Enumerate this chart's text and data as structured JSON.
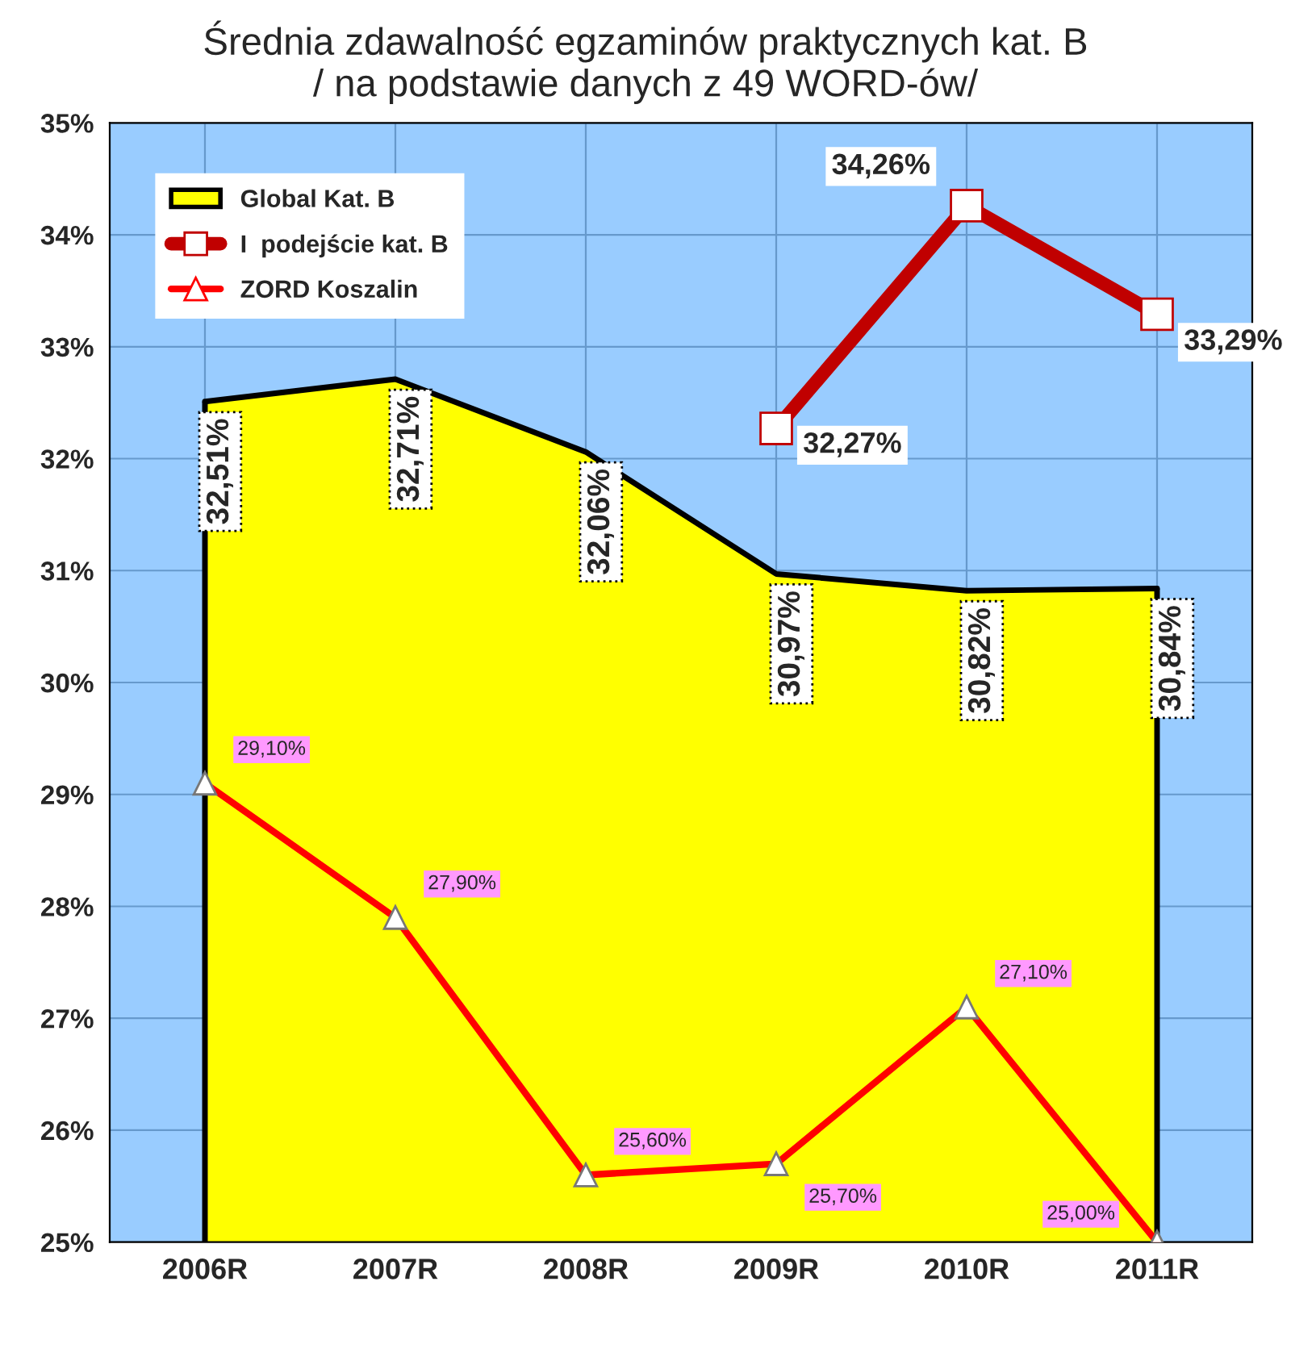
{
  "chart_data": {
    "type": "line",
    "title": "Średnia zdawalność egzaminów praktycznych kat. B\n/ na podstawie danych z 49 WORD-ów/",
    "categories": [
      "2006R",
      "2007R",
      "2008R",
      "2009R",
      "2010R",
      "2011R"
    ],
    "series": [
      {
        "name": "Global Kat. B",
        "type": "area",
        "color": "#ffff00",
        "values": [
          32.51,
          32.71,
          32.06,
          30.97,
          30.82,
          30.84
        ],
        "value_labels": [
          "32,51%",
          "32,71%",
          "32,06%",
          "30,97%",
          "30,82%",
          "30,84%"
        ],
        "marker": "none"
      },
      {
        "name": "I  podejście kat. B",
        "color": "#c00000",
        "values": [
          null,
          null,
          null,
          32.27,
          34.26,
          33.29
        ],
        "value_labels": [
          null,
          null,
          null,
          "32,27%",
          "34,26%",
          "33,29%"
        ],
        "marker": "square"
      },
      {
        "name": "ZORD Koszalin",
        "color": "#ff0000",
        "values": [
          29.1,
          27.9,
          25.6,
          25.7,
          27.1,
          25.0
        ],
        "value_labels": [
          "29,10%",
          "27,90%",
          "25,60%",
          "25,70%",
          "27,10%",
          "25,00%"
        ],
        "marker": "triangle"
      }
    ],
    "ylim": [
      25,
      35
    ],
    "yticks": [
      {
        "value": 25,
        "label": "25%"
      },
      {
        "value": 26,
        "label": "26%"
      },
      {
        "value": 27,
        "label": "27%"
      },
      {
        "value": 28,
        "label": "28%"
      },
      {
        "value": 29,
        "label": "29%"
      },
      {
        "value": 30,
        "label": "30%"
      },
      {
        "value": 31,
        "label": "31%"
      },
      {
        "value": 32,
        "label": "32%"
      },
      {
        "value": 33,
        "label": "33%"
      },
      {
        "value": 34,
        "label": "34%"
      },
      {
        "value": 35,
        "label": "35%"
      }
    ],
    "grid": true,
    "legend": "top left",
    "line_style": "solid"
  }
}
